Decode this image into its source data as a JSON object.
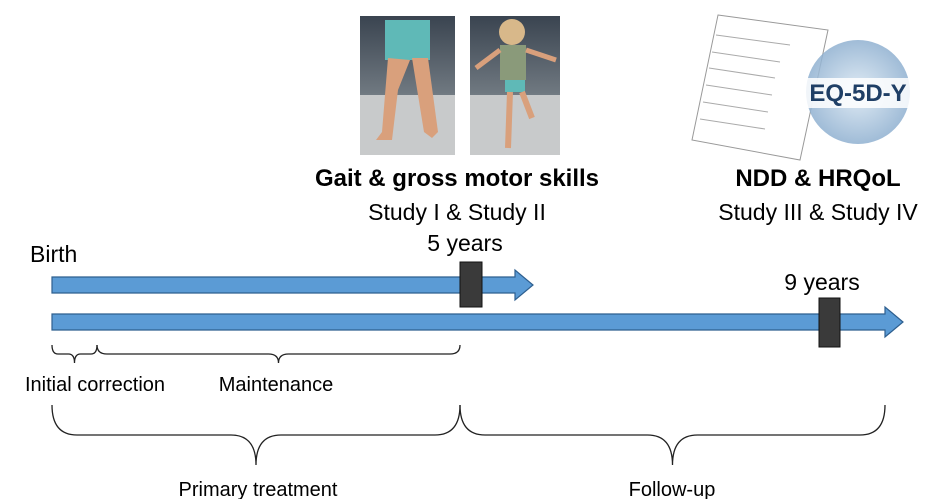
{
  "headings": [
    {
      "title": "Gait & gross motor skills",
      "subtitle": "Study I & Study II"
    },
    {
      "title": "NDD & HRQoL",
      "subtitle": "Study III & Study IV"
    }
  ],
  "logo": "EQ-5D-Y",
  "timeline": {
    "start": "Birth",
    "mark1": "5 years",
    "mark2": "9 years"
  },
  "phases": {
    "initial": "Initial correction",
    "maintenance": "Maintenance",
    "primary": "Primary treatment",
    "followup": "Follow-up"
  }
}
